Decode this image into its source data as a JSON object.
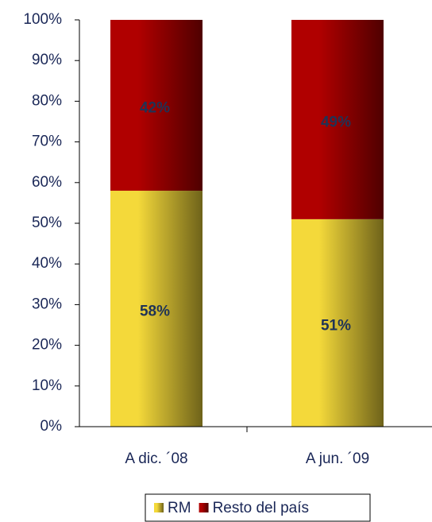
{
  "chart_data": {
    "type": "stacked_bar",
    "categories": [
      "A dic. ´08",
      "A jun. ´09"
    ],
    "series": [
      {
        "name": "RM",
        "color": "#f4d93a",
        "values": [
          58,
          51
        ],
        "value_labels": [
          "58%",
          "51%"
        ]
      },
      {
        "name": "Resto del país",
        "color": "#b00000",
        "values": [
          42,
          49
        ],
        "value_labels": [
          "42%",
          "49%"
        ]
      }
    ],
    "ylim": [
      0,
      100
    ],
    "yticks": [
      {
        "value": 0,
        "label": "0%"
      },
      {
        "value": 10,
        "label": "10%"
      },
      {
        "value": 20,
        "label": "20%"
      },
      {
        "value": 30,
        "label": "30%"
      },
      {
        "value": 40,
        "label": "40%"
      },
      {
        "value": 50,
        "label": "50%"
      },
      {
        "value": 60,
        "label": "60%"
      },
      {
        "value": 70,
        "label": "70%"
      },
      {
        "value": 80,
        "label": "80%"
      },
      {
        "value": 90,
        "label": "90%"
      },
      {
        "value": 100,
        "label": "100%"
      }
    ],
    "legend": "bottom"
  }
}
